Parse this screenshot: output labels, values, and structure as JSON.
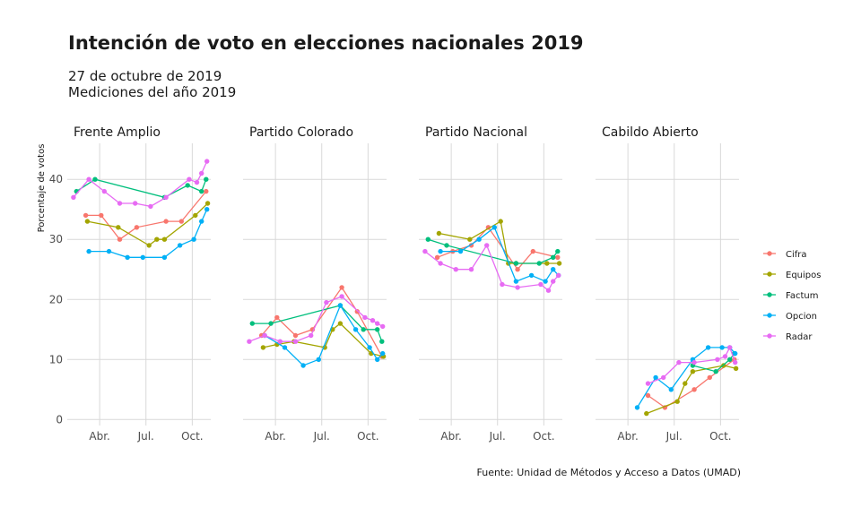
{
  "title": "Intención de voto en elecciones nacionales 2019",
  "subtitle_line1": "27 de octubre de 2019",
  "subtitle_line2": "Mediciones del año 2019",
  "caption": "Fuente: Unidad de Métodos y Acceso a Datos (UMAD)",
  "chart_data": {
    "type": "line",
    "ylabel": "Porcentaje de votos",
    "xlabel": "",
    "ylim": [
      -1,
      46
    ],
    "yticks": [
      0,
      10,
      20,
      30,
      40
    ],
    "x_unit": "months since January 1, 2019",
    "xlim": [
      0.9,
      10.2
    ],
    "xticks": [
      {
        "value": 3,
        "label": "Abr."
      },
      {
        "value": 6,
        "label": "Jul."
      },
      {
        "value": 9,
        "label": "Oct."
      }
    ],
    "grid": true,
    "legend_position": "right",
    "series_colors": {
      "Cifra": "#F8766D",
      "Equipos": "#A3A500",
      "Factum": "#00BF7D",
      "Opcion": "#00B0F6",
      "Radar": "#E76BF3"
    },
    "legend": [
      "Cifra",
      "Equipos",
      "Factum",
      "Opcion",
      "Radar"
    ],
    "panels": [
      {
        "name": "Frente Amplio",
        "series": [
          {
            "name": "Cifra",
            "points": [
              [
                2.1,
                34
              ],
              [
                3.1,
                34
              ],
              [
                4.3,
                30
              ],
              [
                5.4,
                32
              ],
              [
                7.3,
                33
              ],
              [
                8.3,
                33
              ],
              [
                9.9,
                38
              ]
            ]
          },
          {
            "name": "Equipos",
            "points": [
              [
                2.2,
                33
              ],
              [
                4.2,
                32
              ],
              [
                6.2,
                29
              ],
              [
                6.7,
                30
              ],
              [
                7.2,
                30
              ],
              [
                9.2,
                34
              ],
              [
                10.0,
                36
              ]
            ]
          },
          {
            "name": "Factum",
            "points": [
              [
                1.5,
                38
              ],
              [
                2.7,
                40
              ],
              [
                7.2,
                37
              ],
              [
                8.7,
                39
              ],
              [
                9.6,
                38
              ],
              [
                9.9,
                40
              ]
            ]
          },
          {
            "name": "Opcion",
            "points": [
              [
                2.3,
                28
              ],
              [
                3.6,
                28
              ],
              [
                4.8,
                27
              ],
              [
                5.8,
                27
              ],
              [
                7.2,
                27
              ],
              [
                8.2,
                29
              ],
              [
                9.1,
                30
              ],
              [
                9.6,
                33
              ],
              [
                9.95,
                35
              ]
            ]
          },
          {
            "name": "Radar",
            "points": [
              [
                1.3,
                37
              ],
              [
                2.3,
                40
              ],
              [
                3.3,
                38
              ],
              [
                4.3,
                36
              ],
              [
                5.3,
                36
              ],
              [
                6.3,
                35.5
              ],
              [
                7.3,
                37
              ],
              [
                8.8,
                40
              ],
              [
                9.3,
                39.5
              ],
              [
                9.6,
                41
              ],
              [
                9.95,
                43
              ]
            ]
          }
        ]
      },
      {
        "name": "Partido Colorado",
        "series": [
          {
            "name": "Cifra",
            "points": [
              [
                2.1,
                14
              ],
              [
                3.1,
                17
              ],
              [
                4.3,
                14
              ],
              [
                5.4,
                15
              ],
              [
                7.3,
                22
              ],
              [
                8.3,
                18
              ],
              [
                9.9,
                10.5
              ]
            ]
          },
          {
            "name": "Equipos",
            "points": [
              [
                2.2,
                12
              ],
              [
                3.1,
                12.5
              ],
              [
                4.2,
                13
              ],
              [
                6.2,
                12
              ],
              [
                6.7,
                15
              ],
              [
                7.2,
                16
              ],
              [
                9.2,
                11
              ],
              [
                10.0,
                10.5
              ]
            ]
          },
          {
            "name": "Factum",
            "points": [
              [
                1.5,
                16
              ],
              [
                2.7,
                16
              ],
              [
                7.2,
                19
              ],
              [
                8.7,
                15
              ],
              [
                9.6,
                15
              ],
              [
                9.9,
                13
              ]
            ]
          },
          {
            "name": "Opcion",
            "points": [
              [
                2.3,
                14
              ],
              [
                3.6,
                12
              ],
              [
                4.8,
                9
              ],
              [
                5.8,
                10
              ],
              [
                7.2,
                19
              ],
              [
                8.2,
                15
              ],
              [
                9.1,
                12
              ],
              [
                9.6,
                10
              ],
              [
                9.95,
                11
              ]
            ]
          },
          {
            "name": "Radar",
            "points": [
              [
                1.3,
                13
              ],
              [
                2.3,
                14
              ],
              [
                3.3,
                13
              ],
              [
                4.3,
                13
              ],
              [
                5.3,
                14
              ],
              [
                6.3,
                19.5
              ],
              [
                7.3,
                20.5
              ],
              [
                8.8,
                17
              ],
              [
                9.3,
                16.5
              ],
              [
                9.6,
                16
              ],
              [
                9.95,
                15.5
              ]
            ]
          }
        ]
      },
      {
        "name": "Partido Nacional",
        "series": [
          {
            "name": "Cifra",
            "points": [
              [
                2.1,
                27
              ],
              [
                3.1,
                28
              ],
              [
                4.3,
                29
              ],
              [
                5.4,
                32
              ],
              [
                7.3,
                25
              ],
              [
                8.3,
                28
              ],
              [
                9.9,
                27
              ]
            ]
          },
          {
            "name": "Equipos",
            "points": [
              [
                2.2,
                31
              ],
              [
                4.2,
                30
              ],
              [
                6.2,
                33
              ],
              [
                6.7,
                26
              ],
              [
                7.2,
                26
              ],
              [
                9.2,
                26
              ],
              [
                10.0,
                26
              ]
            ]
          },
          {
            "name": "Factum",
            "points": [
              [
                1.5,
                30
              ],
              [
                2.7,
                29
              ],
              [
                7.2,
                26
              ],
              [
                8.7,
                26
              ],
              [
                9.6,
                27
              ],
              [
                9.9,
                28
              ]
            ]
          },
          {
            "name": "Opcion",
            "points": [
              [
                2.3,
                28
              ],
              [
                3.6,
                28
              ],
              [
                4.8,
                30
              ],
              [
                5.8,
                32
              ],
              [
                7.2,
                23
              ],
              [
                8.2,
                24
              ],
              [
                9.1,
                23
              ],
              [
                9.6,
                25
              ],
              [
                9.95,
                24
              ]
            ]
          },
          {
            "name": "Radar",
            "points": [
              [
                1.3,
                28
              ],
              [
                2.3,
                26
              ],
              [
                3.3,
                25
              ],
              [
                4.3,
                25
              ],
              [
                5.3,
                29
              ],
              [
                6.3,
                22.5
              ],
              [
                7.3,
                22
              ],
              [
                8.8,
                22.5
              ],
              [
                9.3,
                21.5
              ],
              [
                9.6,
                23
              ],
              [
                9.95,
                24
              ]
            ]
          }
        ]
      },
      {
        "name": "Cabildo Abierto",
        "series": [
          {
            "name": "Cifra",
            "points": [
              [
                4.3,
                4
              ],
              [
                5.4,
                2
              ],
              [
                7.3,
                5
              ],
              [
                8.3,
                7
              ],
              [
                9.9,
                10
              ]
            ]
          },
          {
            "name": "Equipos",
            "points": [
              [
                4.2,
                1
              ],
              [
                6.2,
                3
              ],
              [
                6.7,
                6
              ],
              [
                7.2,
                8
              ],
              [
                9.2,
                9
              ],
              [
                10.0,
                8.5
              ]
            ]
          },
          {
            "name": "Factum",
            "points": [
              [
                7.2,
                9
              ],
              [
                8.7,
                8
              ],
              [
                9.6,
                10
              ],
              [
                9.9,
                11
              ]
            ]
          },
          {
            "name": "Opcion",
            "points": [
              [
                3.6,
                2
              ],
              [
                4.8,
                7
              ],
              [
                5.8,
                5
              ],
              [
                7.2,
                10
              ],
              [
                8.2,
                12
              ],
              [
                9.1,
                12
              ],
              [
                9.6,
                12
              ],
              [
                9.95,
                11
              ]
            ]
          },
          {
            "name": "Radar",
            "points": [
              [
                4.3,
                6
              ],
              [
                5.3,
                7
              ],
              [
                6.3,
                9.5
              ],
              [
                7.3,
                9.5
              ],
              [
                8.8,
                10
              ],
              [
                9.3,
                10.5
              ],
              [
                9.6,
                12
              ],
              [
                9.95,
                9.5
              ]
            ]
          }
        ]
      }
    ]
  }
}
